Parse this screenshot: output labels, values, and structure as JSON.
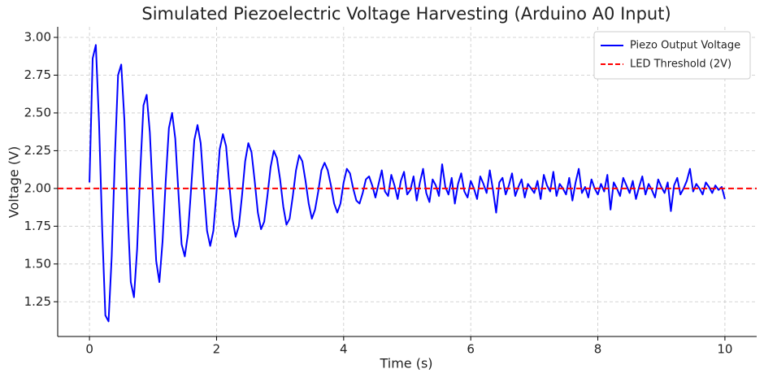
{
  "chart_data": {
    "type": "line",
    "title": "Simulated Piezoelectric Voltage Harvesting (Arduino A0 Input)",
    "xlabel": "Time (s)",
    "ylabel": "Voltage (V)",
    "xlim": [
      -0.5,
      10.5
    ],
    "ylim": [
      1.02,
      3.07
    ],
    "xticks": [
      0,
      2,
      4,
      6,
      8,
      10
    ],
    "yticks": [
      {
        "value": 1.25,
        "label": "1.25"
      },
      {
        "value": 1.5,
        "label": "1.50"
      },
      {
        "value": 1.75,
        "label": "1.75"
      },
      {
        "value": 2,
        "label": "2.00"
      },
      {
        "value": 2.25,
        "label": "2.25"
      },
      {
        "value": 2.5,
        "label": "2.50"
      },
      {
        "value": 2.75,
        "label": "2.75"
      },
      {
        "value": 3,
        "label": "3.00"
      }
    ],
    "grid": true,
    "legend": "upper right",
    "x": [
      0,
      0.05,
      0.1,
      0.15,
      0.2,
      0.25,
      0.3,
      0.35,
      0.4,
      0.45,
      0.5,
      0.55,
      0.6,
      0.65,
      0.7,
      0.75,
      0.8,
      0.85,
      0.9,
      0.95,
      1,
      1.05,
      1.1,
      1.15,
      1.2,
      1.25,
      1.3,
      1.35,
      1.4,
      1.45,
      1.5,
      1.55,
      1.6,
      1.65,
      1.7,
      1.75,
      1.8,
      1.85,
      1.9,
      1.95,
      2,
      2.05,
      2.1,
      2.15,
      2.2,
      2.25,
      2.3,
      2.35,
      2.4,
      2.45,
      2.5,
      2.55,
      2.6,
      2.65,
      2.7,
      2.75,
      2.8,
      2.85,
      2.9,
      2.95,
      3,
      3.05,
      3.1,
      3.15,
      3.2,
      3.25,
      3.3,
      3.35,
      3.4,
      3.45,
      3.5,
      3.55,
      3.6,
      3.65,
      3.7,
      3.75,
      3.8,
      3.85,
      3.9,
      3.95,
      4,
      4.05,
      4.1,
      4.15,
      4.2,
      4.25,
      4.3,
      4.35,
      4.4,
      4.45,
      4.5,
      4.55,
      4.6,
      4.65,
      4.7,
      4.75,
      4.8,
      4.85,
      4.9,
      4.95,
      5,
      5.05,
      5.1,
      5.15,
      5.2,
      5.25,
      5.3,
      5.35,
      5.4,
      5.45,
      5.5,
      5.55,
      5.6,
      5.65,
      5.7,
      5.75,
      5.8,
      5.85,
      5.9,
      5.95,
      6,
      6.05,
      6.1,
      6.15,
      6.2,
      6.25,
      6.3,
      6.35,
      6.4,
      6.45,
      6.5,
      6.55,
      6.6,
      6.65,
      6.7,
      6.75,
      6.8,
      6.85,
      6.9,
      6.95,
      7,
      7.05,
      7.1,
      7.15,
      7.2,
      7.25,
      7.3,
      7.35,
      7.4,
      7.45,
      7.5,
      7.55,
      7.6,
      7.65,
      7.7,
      7.75,
      7.8,
      7.85,
      7.9,
      7.95,
      8,
      8.05,
      8.1,
      8.15,
      8.2,
      8.25,
      8.3,
      8.35,
      8.4,
      8.45,
      8.5,
      8.55,
      8.6,
      8.65,
      8.7,
      8.75,
      8.8,
      8.85,
      8.9,
      8.95,
      9,
      9.05,
      9.1,
      9.15,
      9.2,
      9.25,
      9.3,
      9.35,
      9.4,
      9.45,
      9.5,
      9.55,
      9.6,
      9.65,
      9.7,
      9.75,
      9.8,
      9.85,
      9.9,
      9.95,
      10
    ],
    "series": [
      {
        "name": "Piezo Output Voltage",
        "color": "#0000ff",
        "values": [
          2.04,
          2.86,
          2.95,
          2.44,
          1.73,
          1.16,
          1.12,
          1.55,
          2.21,
          2.75,
          2.82,
          2.45,
          1.85,
          1.38,
          1.28,
          1.6,
          2.12,
          2.55,
          2.62,
          2.37,
          1.93,
          1.52,
          1.38,
          1.65,
          2.05,
          2.4,
          2.5,
          2.33,
          1.97,
          1.63,
          1.55,
          1.7,
          2.0,
          2.32,
          2.42,
          2.3,
          2.0,
          1.72,
          1.62,
          1.72,
          1.98,
          2.26,
          2.36,
          2.28,
          2.03,
          1.8,
          1.68,
          1.75,
          1.95,
          2.18,
          2.3,
          2.24,
          2.05,
          1.84,
          1.73,
          1.78,
          1.95,
          2.14,
          2.25,
          2.2,
          2.06,
          1.88,
          1.76,
          1.8,
          1.95,
          2.12,
          2.22,
          2.18,
          2.05,
          1.9,
          1.8,
          1.86,
          1.98,
          2.12,
          2.17,
          2.12,
          2.02,
          1.9,
          1.84,
          1.9,
          2.04,
          2.13,
          2.1,
          2.0,
          1.92,
          1.9,
          1.97,
          2.06,
          2.08,
          2.02,
          1.94,
          2.03,
          2.12,
          1.98,
          1.95,
          2.09,
          2.02,
          1.93,
          2.05,
          2.11,
          1.96,
          1.99,
          2.08,
          1.92,
          2.04,
          2.13,
          1.97,
          1.91,
          2.06,
          2.02,
          1.95,
          2.16,
          2.01,
          1.96,
          2.07,
          1.9,
          2.03,
          2.1,
          1.98,
          1.94,
          2.05,
          2.0,
          1.93,
          2.08,
          2.03,
          1.97,
          2.12,
          1.99,
          1.84,
          2.04,
          2.07,
          1.96,
          2.02,
          2.1,
          1.95,
          2.01,
          2.06,
          1.94,
          2.03,
          2.0,
          1.97,
          2.05,
          1.93,
          2.09,
          2.02,
          1.98,
          2.11,
          1.95,
          2.03,
          2.0,
          1.96,
          2.07,
          1.92,
          2.04,
          2.13,
          1.97,
          2.01,
          1.94,
          2.06,
          2.0,
          1.96,
          2.03,
          1.98,
          2.09,
          1.86,
          2.04,
          2.0,
          1.95,
          2.07,
          2.02,
          1.97,
          2.05,
          1.93,
          2.01,
          2.08,
          1.96,
          2.03,
          1.99,
          1.94,
          2.06,
          2.01,
          1.97,
          2.04,
          1.85,
          2.02,
          2.07,
          1.96,
          2.0,
          2.05,
          2.13,
          1.98,
          2.03,
          2.0,
          1.96,
          2.04,
          2.01,
          1.97,
          2.02,
          1.99,
          2.01,
          1.93
        ]
      }
    ],
    "threshold": {
      "name": "LED Threshold (2V)",
      "value": 2,
      "color": "#ff0000"
    }
  }
}
